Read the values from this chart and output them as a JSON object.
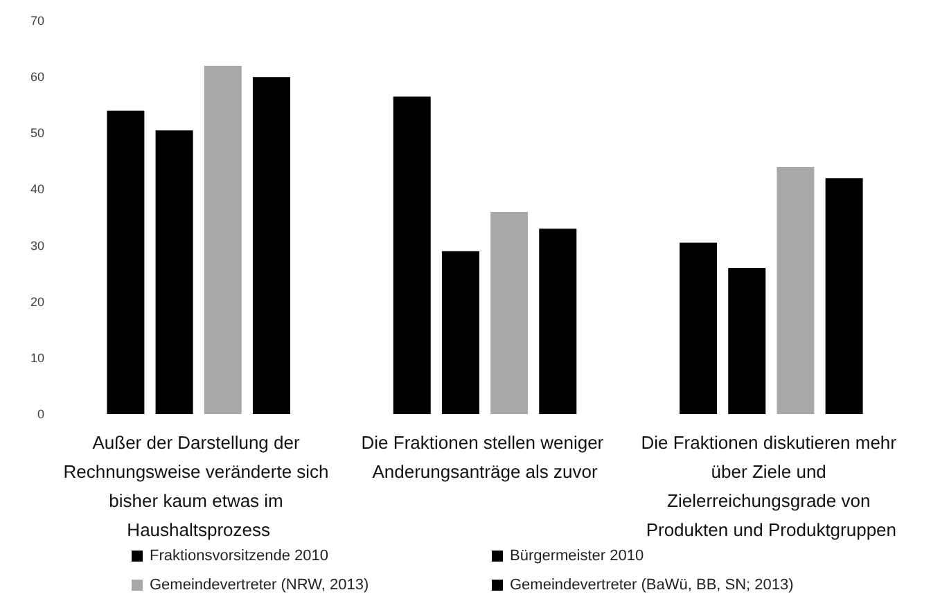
{
  "chart_data": {
    "type": "bar",
    "categories": [
      "Außer der Darstellung der Rechnungsweise veränderte sich bisher kaum etwas im Haushaltsprozess",
      "Die Fraktionen stellen weniger Anderungsanträge als zuvor",
      "Die Fraktionen diskutieren mehr über Ziele und Zielerreichungsgrade von Produkten und Produktgruppen"
    ],
    "series": [
      {
        "name": "Fraktionsvorsitzende 2010",
        "color": "#000000",
        "values": [
          54,
          56.5,
          30.5
        ]
      },
      {
        "name": "Bürgermeister 2010",
        "color": "#000000",
        "values": [
          50.5,
          29,
          26
        ]
      },
      {
        "name": "Gemeindevertreter (NRW, 2013)",
        "color": "#a8a8a8",
        "values": [
          62,
          36,
          44
        ]
      },
      {
        "name": "Gemeindevertreter (BaWü, BB, SN; 2013)",
        "color": "#000000",
        "values": [
          60,
          33,
          42
        ]
      }
    ],
    "ylim": [
      0,
      70
    ],
    "yticks": [
      0,
      10,
      20,
      30,
      40,
      50,
      60,
      70
    ],
    "grid": false,
    "legend": "bottom"
  }
}
